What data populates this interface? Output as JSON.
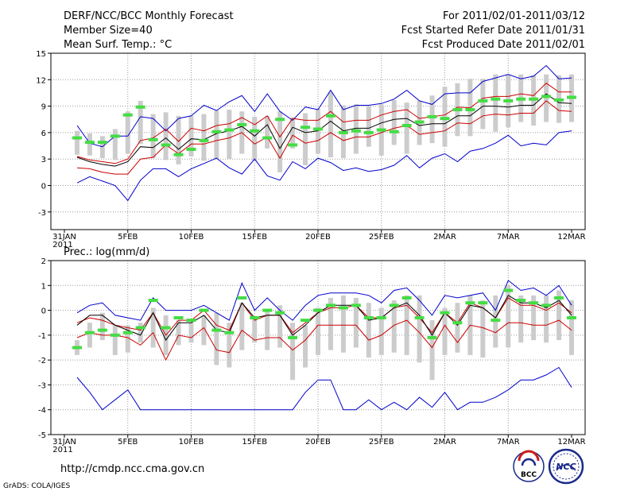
{
  "header": {
    "title": "DERF/NCC/BCC Monthly Forecast",
    "member_size": "Member Size=40",
    "variable": "Mean Surf. Temp.: °C",
    "period": "For 2011/02/01-2011/03/12",
    "start_date": "Fcst Started Refer Date 2011/01/31",
    "produced_date": "Fcst Produced Date 2011/02/01"
  },
  "footer": {
    "url": "http://cmdp.ncc.cma.gov.cn",
    "grads": "GrADS: COLA/IGES",
    "logo_bcc": "BCC",
    "logo_ncc": "NCC"
  },
  "colors": {
    "max_min": "#0000cc",
    "spread": "#cc0000",
    "mean": "#000000",
    "box": "#cccccc",
    "observed": "#44dd44"
  },
  "chart_data": [
    {
      "type": "box",
      "title": "Mean Surf. Temp.: °C",
      "ylim": [
        -5,
        15
      ],
      "yticks": [
        -3,
        0,
        3,
        6,
        9,
        12,
        15
      ],
      "x_tick_labels": [
        {
          "day": 0,
          "label": "31JAN",
          "sub": "2011"
        },
        {
          "day": 5,
          "label": "5FEB"
        },
        {
          "day": 10,
          "label": "10FEB"
        },
        {
          "day": 15,
          "label": "15FEB"
        },
        {
          "day": 20,
          "label": "20FEB"
        },
        {
          "day": 25,
          "label": "25FEB"
        },
        {
          "day": 30,
          "label": "2MAR"
        },
        {
          "day": 35,
          "label": "7MAR"
        },
        {
          "day": 40,
          "label": "12MAR"
        }
      ],
      "days": [
        1,
        2,
        3,
        4,
        5,
        6,
        7,
        8,
        9,
        10,
        11,
        12,
        13,
        14,
        15,
        16,
        17,
        18,
        19,
        20,
        21,
        22,
        23,
        24,
        25,
        26,
        27,
        28,
        29,
        30,
        31,
        32,
        33,
        34,
        35,
        36,
        37,
        38,
        39,
        40
      ],
      "box_low": [
        3.5,
        3.4,
        3.1,
        2.9,
        3.6,
        4.7,
        3.1,
        2.9,
        2.4,
        3.3,
        2.8,
        3.0,
        3.0,
        3.6,
        2.8,
        4.2,
        1.5,
        4.2,
        2.3,
        3.6,
        3.2,
        3.1,
        3.6,
        4.4,
        3.4,
        4.6,
        3.6,
        4.6,
        4.8,
        4.4,
        5.6,
        5.6,
        6.4,
        6.1,
        6.6,
        7.2,
        6.8,
        7.2,
        7.1,
        7.2
      ],
      "box_high": [
        6.2,
        5.9,
        5.6,
        6.4,
        8.4,
        9.6,
        8.1,
        8.3,
        7.9,
        7.9,
        8.1,
        8.5,
        8.6,
        8.4,
        7.8,
        7.9,
        8.4,
        7.7,
        8.2,
        8.7,
        10.6,
        9.1,
        9.2,
        9.0,
        9.2,
        9.7,
        9.4,
        9.6,
        10.2,
        11.2,
        11.6,
        12.1,
        12.1,
        12.6,
        12.6,
        12.6,
        12.5,
        12.6,
        12.5,
        12.6
      ],
      "obs": [
        5.4,
        4.9,
        4.9,
        5.6,
        8.0,
        8.9,
        5.2,
        4.6,
        3.5,
        4.1,
        5.1,
        6.1,
        6.3,
        6.9,
        6.2,
        5.4,
        7.5,
        4.6,
        6.6,
        6.4,
        7.9,
        6.0,
        6.2,
        6.0,
        6.3,
        6.1,
        6.8,
        7.2,
        7.8,
        7.6,
        8.6,
        8.6,
        9.6,
        9.8,
        9.6,
        9.8,
        9.8,
        10.1,
        9.7,
        10.0
      ],
      "max": [
        6.8,
        4.8,
        4.4,
        5.6,
        5.6,
        7.8,
        7.6,
        6.2,
        7.6,
        7.9,
        9.1,
        8.5,
        9.5,
        10.2,
        8.4,
        10.4,
        8.4,
        7.4,
        8.9,
        8.6,
        10.8,
        8.6,
        9.1,
        9.1,
        9.3,
        9.8,
        10.8,
        9.6,
        9.2,
        10.4,
        10.5,
        10.5,
        11.8,
        12.2,
        12.6,
        12.1,
        12.4,
        13.6,
        12.1,
        12.2
      ],
      "upper": [
        3.3,
        2.9,
        2.7,
        2.5,
        3.0,
        5.1,
        5.4,
        6.4,
        5.0,
        6.5,
        6.2,
        6.8,
        7.0,
        7.7,
        6.9,
        7.9,
        5.5,
        7.6,
        7.4,
        7.4,
        8.4,
        7.2,
        7.4,
        7.4,
        8.0,
        8.4,
        8.6,
        7.6,
        7.8,
        8.0,
        8.9,
        8.8,
        9.9,
        10.1,
        10.1,
        10.4,
        10.2,
        11.6,
        10.6,
        10.6
      ],
      "mean": [
        3.2,
        2.7,
        2.4,
        2.2,
        2.7,
        4.4,
        4.3,
        5.4,
        4.1,
        5.3,
        5.2,
        5.9,
        6.2,
        6.7,
        5.6,
        6.9,
        4.2,
        6.6,
        6.0,
        6.2,
        7.3,
        6.2,
        6.5,
        6.5,
        7.1,
        7.5,
        7.6,
        6.8,
        7.0,
        7.0,
        7.9,
        7.9,
        9.0,
        9.0,
        8.9,
        9.1,
        9.1,
        10.4,
        9.4,
        9.3
      ],
      "lower": [
        2.0,
        1.9,
        1.5,
        1.3,
        1.3,
        3.0,
        3.2,
        4.6,
        3.6,
        4.7,
        4.7,
        5.1,
        5.4,
        6.0,
        4.7,
        5.5,
        3.1,
        5.7,
        4.8,
        5.1,
        6.0,
        5.1,
        5.5,
        5.5,
        6.0,
        6.5,
        6.8,
        5.8,
        6.0,
        6.2,
        7.1,
        7.0,
        7.9,
        8.1,
        8.0,
        8.2,
        8.2,
        9.6,
        8.5,
        8.4
      ],
      "min": [
        0.3,
        1.0,
        0.5,
        0.0,
        -1.7,
        0.6,
        1.9,
        1.9,
        1.0,
        1.9,
        2.5,
        3.1,
        2.0,
        1.3,
        3.0,
        1.1,
        0.6,
        2.7,
        1.9,
        3.1,
        2.6,
        1.7,
        2.0,
        1.6,
        1.8,
        2.3,
        3.4,
        2.0,
        3.1,
        3.6,
        2.7,
        3.9,
        4.2,
        4.8,
        5.7,
        4.5,
        4.8,
        4.6,
        6.0,
        6.2
      ]
    },
    {
      "type": "box",
      "title": "Prec.: log(mm/d)",
      "ylim": [
        -5,
        2
      ],
      "yticks": [
        -5,
        -4,
        -3,
        -2,
        -1,
        0,
        1,
        2
      ],
      "x_tick_labels": [
        {
          "day": 0,
          "label": "31JAN",
          "sub": "2011"
        },
        {
          "day": 5,
          "label": "5FEB"
        },
        {
          "day": 10,
          "label": "10FEB"
        },
        {
          "day": 15,
          "label": "15FEB"
        },
        {
          "day": 20,
          "label": "20FEB"
        },
        {
          "day": 25,
          "label": "25FEB"
        },
        {
          "day": 30,
          "label": "2MAR"
        },
        {
          "day": 35,
          "label": "7MAR"
        },
        {
          "day": 40,
          "label": "12MAR"
        }
      ],
      "days": [
        1,
        2,
        3,
        4,
        5,
        6,
        7,
        8,
        9,
        10,
        11,
        12,
        13,
        14,
        15,
        16,
        17,
        18,
        19,
        20,
        21,
        22,
        23,
        24,
        25,
        26,
        27,
        28,
        29,
        30,
        31,
        32,
        33,
        34,
        35,
        36,
        37,
        38,
        39,
        40
      ],
      "box_low": [
        -1.8,
        -1.5,
        -1.2,
        -1.8,
        -1.7,
        -1.3,
        -1.5,
        -1.8,
        -1.4,
        -1.3,
        -1.4,
        -2.2,
        -2.3,
        -1.6,
        -1.3,
        -1.6,
        -1.5,
        -2.8,
        -2.3,
        -1.8,
        -1.6,
        -1.7,
        -1.5,
        -1.9,
        -1.8,
        -1.7,
        -1.8,
        -2.1,
        -2.8,
        -1.8,
        -1.7,
        -1.8,
        -1.9,
        -1.5,
        -1.5,
        -1.3,
        -1.2,
        -1.3,
        -1.2,
        -1.8
      ],
      "box_high": [
        -1.2,
        -0.5,
        -0.1,
        -0.6,
        -0.6,
        -0.5,
        0.1,
        -0.2,
        -0.4,
        -0.5,
        -0.2,
        -0.1,
        -0.5,
        0.3,
        -0.3,
        0.0,
        0.2,
        -0.5,
        -0.6,
        0.1,
        0.5,
        0.6,
        0.5,
        0.3,
        0.1,
        0.4,
        0.6,
        0.6,
        -0.4,
        0.1,
        0.3,
        0.6,
        0.4,
        0.6,
        1.0,
        0.6,
        0.6,
        0.6,
        0.8,
        0.4
      ],
      "obs": [
        -1.5,
        -0.9,
        -0.8,
        -1.0,
        -0.9,
        -0.7,
        0.4,
        -0.7,
        -0.3,
        -0.4,
        0.0,
        -0.8,
        -0.9,
        0.5,
        -0.3,
        0.0,
        -0.1,
        -1.1,
        -0.4,
        0.0,
        0.2,
        0.1,
        0.2,
        -0.3,
        -0.3,
        0.2,
        0.5,
        -0.3,
        -1.1,
        -0.1,
        -0.5,
        0.3,
        0.3,
        -0.4,
        0.8,
        0.4,
        0.3,
        0.2,
        0.5,
        -0.3
      ],
      "max": [
        -0.1,
        0.2,
        0.3,
        -0.2,
        -0.3,
        -0.4,
        0.5,
        0.0,
        0.0,
        0.0,
        0.2,
        -0.1,
        -0.4,
        1.1,
        0.0,
        0.5,
        0.0,
        -0.4,
        0.2,
        0.6,
        0.7,
        0.7,
        0.7,
        0.6,
        0.3,
        0.8,
        0.9,
        0.4,
        -0.2,
        0.6,
        0.5,
        0.6,
        0.7,
        0.0,
        1.2,
        0.8,
        0.9,
        0.6,
        1.0,
        0.2
      ],
      "upper": [
        -0.5,
        -0.3,
        -0.4,
        -0.6,
        -0.7,
        -0.8,
        -0.1,
        -1.0,
        -0.4,
        -0.4,
        0.0,
        -0.6,
        -0.8,
        0.3,
        -0.4,
        -0.2,
        -0.2,
        -0.9,
        -0.5,
        -0.1,
        0.1,
        0.1,
        0.2,
        -0.3,
        -0.3,
        0.1,
        0.2,
        -0.3,
        -0.9,
        -0.1,
        -0.5,
        0.3,
        0.1,
        -0.3,
        0.5,
        0.2,
        0.2,
        0.0,
        0.3,
        -0.1
      ],
      "mean": [
        -0.6,
        -0.2,
        -0.2,
        -0.6,
        -0.8,
        -1.0,
        -0.1,
        -1.2,
        -0.5,
        -0.5,
        -0.2,
        -0.8,
        -0.9,
        0.3,
        -0.3,
        -0.2,
        -0.2,
        -1.0,
        -0.6,
        -0.1,
        0.2,
        0.2,
        0.2,
        -0.4,
        -0.3,
        0.1,
        0.3,
        -0.2,
        -1.0,
        -0.1,
        -0.6,
        0.2,
        0.1,
        -0.3,
        0.6,
        0.3,
        0.3,
        0.1,
        0.4,
        -0.2
      ],
      "lower": [
        -1.1,
        -0.9,
        -1.0,
        -1.0,
        -1.1,
        -1.4,
        -0.9,
        -2.0,
        -1.0,
        -1.1,
        -0.7,
        -1.6,
        -1.7,
        -0.8,
        -1.2,
        -1.1,
        -1.1,
        -1.6,
        -1.2,
        -0.6,
        -0.6,
        -0.6,
        -0.6,
        -1.2,
        -1.0,
        -0.6,
        -0.4,
        -0.9,
        -1.5,
        -0.6,
        -1.3,
        -0.6,
        -0.7,
        -0.9,
        -0.5,
        -0.5,
        -0.6,
        -0.6,
        -0.4,
        -0.8
      ],
      "min": [
        -2.7,
        -3.3,
        -4.0,
        -3.6,
        -3.2,
        -4.0,
        -4.0,
        -4.0,
        -4.0,
        -4.0,
        -4.0,
        -4.0,
        -4.0,
        -4.0,
        -4.0,
        -4.0,
        -4.0,
        -4.0,
        -3.3,
        -2.8,
        -2.8,
        -4.0,
        -4.0,
        -3.6,
        -4.0,
        -3.7,
        -4.0,
        -3.5,
        -3.9,
        -3.3,
        -4.0,
        -3.7,
        -3.7,
        -3.5,
        -3.2,
        -2.8,
        -2.8,
        -2.6,
        -2.3,
        -3.1
      ]
    }
  ]
}
